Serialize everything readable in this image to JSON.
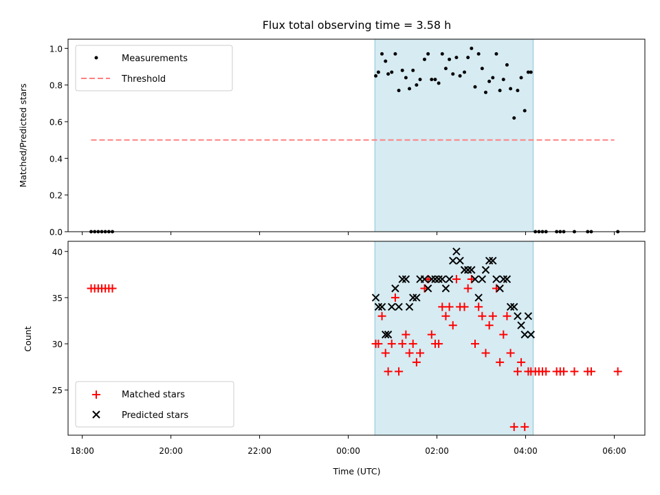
{
  "chart_data": [
    {
      "type": "scatter",
      "title": "Flux total observing time = 3.58 h",
      "xlabel": "",
      "ylabel": "Matched/Predicted stars",
      "xlim": [
        17.68,
        30.69
      ],
      "ylim": [
        0.0,
        1.05
      ],
      "xticks": [
        18,
        20,
        22,
        24,
        26,
        28,
        30
      ],
      "yticks": [
        0.0,
        0.2,
        0.4,
        0.6,
        0.8,
        1.0
      ],
      "ytick_labels": [
        "0.0",
        "0.2",
        "0.4",
        "0.6",
        "0.8",
        "1.0"
      ],
      "observing_span": [
        24.6,
        28.17
      ],
      "legend": {
        "location": "upper left",
        "entries": [
          "Measurements",
          "Threshold"
        ]
      },
      "threshold": {
        "name": "Threshold",
        "color": "#ff7f7f",
        "value": 0.5,
        "x": [
          18.2,
          30.0
        ]
      },
      "series": [
        {
          "name": "Measurements",
          "color": "#000000",
          "marker": "dot",
          "x": [
            18.2,
            18.28,
            18.36,
            18.44,
            18.52,
            18.6,
            18.68,
            24.62,
            24.68,
            24.76,
            24.84,
            24.9,
            24.98,
            25.06,
            25.14,
            25.22,
            25.3,
            25.38,
            25.46,
            25.54,
            25.62,
            25.72,
            25.8,
            25.88,
            25.96,
            26.04,
            26.12,
            26.2,
            26.28,
            26.36,
            26.44,
            26.52,
            26.62,
            26.7,
            26.78,
            26.86,
            26.94,
            27.02,
            27.1,
            27.18,
            27.26,
            27.34,
            27.42,
            27.5,
            27.58,
            27.66,
            27.74,
            27.82,
            27.9,
            27.98,
            28.06,
            28.12,
            28.22,
            28.3,
            28.38,
            28.46,
            28.7,
            28.78,
            28.86,
            29.1,
            29.4,
            29.48,
            30.08
          ],
          "y": [
            0,
            0,
            0,
            0,
            0,
            0,
            0,
            0.85,
            0.87,
            0.97,
            0.93,
            0.86,
            0.87,
            0.97,
            0.77,
            0.88,
            0.84,
            0.78,
            0.88,
            0.8,
            0.83,
            0.94,
            0.97,
            0.83,
            0.83,
            0.81,
            0.97,
            0.89,
            0.94,
            0.86,
            0.95,
            0.85,
            0.87,
            0.95,
            1.0,
            0.79,
            0.97,
            0.89,
            0.76,
            0.82,
            0.84,
            0.97,
            0.77,
            0.83,
            0.91,
            0.78,
            0.62,
            0.77,
            0.84,
            0.66,
            0.87,
            0.87,
            0,
            0,
            0,
            0,
            0,
            0,
            0,
            0,
            0,
            0,
            0
          ]
        }
      ]
    },
    {
      "type": "scatter",
      "title": "",
      "xlabel": "Time (UTC)",
      "ylabel": "Count",
      "xlim": [
        17.68,
        30.69
      ],
      "ylim": [
        20.1,
        41.1
      ],
      "xticks": [
        18,
        20,
        22,
        24,
        26,
        28,
        30
      ],
      "xtick_labels": [
        "18:00",
        "20:00",
        "22:00",
        "00:00",
        "02:00",
        "04:00",
        "06:00"
      ],
      "yticks": [
        25,
        30,
        35,
        40
      ],
      "ytick_labels": [
        "25",
        "30",
        "35",
        "40"
      ],
      "observing_span": [
        24.6,
        28.17
      ],
      "legend": {
        "location": "lower left",
        "entries": [
          "Matched stars",
          "Predicted stars"
        ]
      },
      "series": [
        {
          "name": "Matched stars",
          "color": "#ff0000",
          "marker": "plus",
          "x": [
            18.2,
            18.28,
            18.36,
            18.44,
            18.52,
            18.6,
            18.68,
            24.62,
            24.68,
            24.76,
            24.84,
            24.9,
            24.98,
            25.06,
            25.14,
            25.22,
            25.3,
            25.38,
            25.46,
            25.54,
            25.62,
            25.72,
            25.8,
            25.88,
            25.96,
            26.04,
            26.12,
            26.2,
            26.28,
            26.36,
            26.44,
            26.52,
            26.62,
            26.7,
            26.78,
            26.86,
            26.94,
            27.02,
            27.1,
            27.18,
            27.26,
            27.34,
            27.42,
            27.5,
            27.58,
            27.66,
            27.74,
            27.82,
            27.9,
            27.98,
            28.06,
            28.12,
            28.22,
            28.3,
            28.38,
            28.46,
            28.7,
            28.78,
            28.86,
            29.1,
            29.4,
            29.48,
            30.08
          ],
          "y": [
            36,
            36,
            36,
            36,
            36,
            36,
            36,
            30,
            30,
            33,
            29,
            27,
            30,
            35,
            27,
            30,
            31,
            29,
            30,
            28,
            29,
            36,
            37,
            31,
            30,
            30,
            34,
            33,
            34,
            32,
            37,
            34,
            34,
            36,
            37,
            30,
            34,
            33,
            29,
            32,
            33,
            36,
            28,
            31,
            33,
            29,
            21,
            27,
            28,
            21,
            27,
            27,
            27,
            27,
            27,
            27,
            27,
            27,
            27,
            27,
            27,
            27,
            27
          ]
        },
        {
          "name": "Predicted stars",
          "color": "#000000",
          "marker": "x",
          "x": [
            24.62,
            24.68,
            24.76,
            24.84,
            24.9,
            24.98,
            25.06,
            25.14,
            25.22,
            25.3,
            25.38,
            25.46,
            25.54,
            25.62,
            25.72,
            25.8,
            25.88,
            25.96,
            26.04,
            26.12,
            26.2,
            26.28,
            26.36,
            26.44,
            26.52,
            26.62,
            26.7,
            26.78,
            26.86,
            26.94,
            27.02,
            27.1,
            27.18,
            27.26,
            27.34,
            27.42,
            27.5,
            27.58,
            27.66,
            27.74,
            27.82,
            27.9,
            27.98,
            28.06,
            28.12
          ],
          "y": [
            35,
            34,
            34,
            31,
            31,
            34,
            36,
            34,
            37,
            37,
            34,
            35,
            35,
            37,
            37,
            36,
            37,
            37,
            37,
            37,
            36,
            37,
            39,
            40,
            39,
            38,
            38,
            38,
            37,
            35,
            37,
            38,
            39,
            39,
            37,
            36,
            37,
            37,
            34,
            34,
            33,
            32,
            31,
            33,
            31
          ]
        }
      ]
    }
  ]
}
